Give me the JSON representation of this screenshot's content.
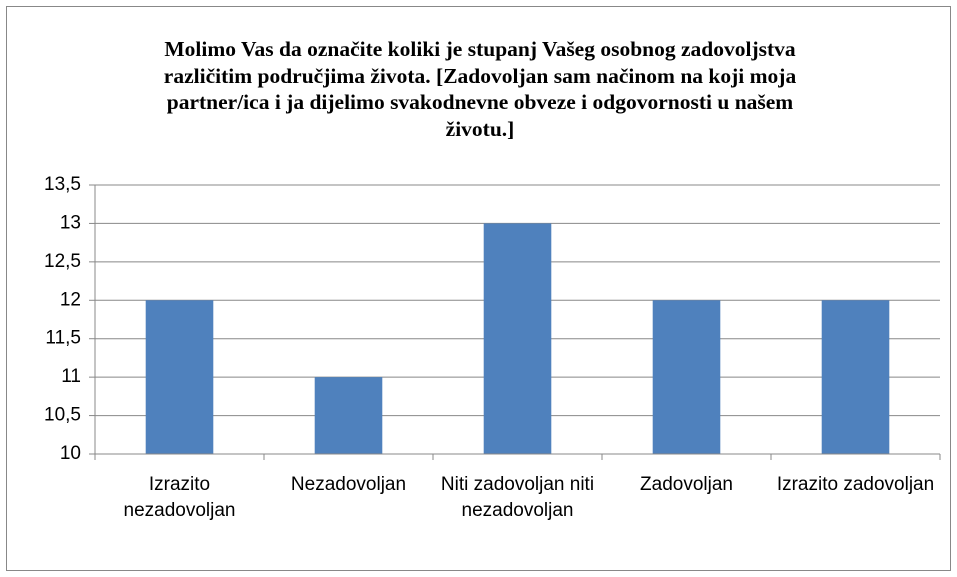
{
  "chart_data": {
    "type": "bar",
    "title": "Molimo Vas da označite koliki je stupanj Vašeg osobnog zadovoljstva različitim područjima života. [Zadovoljan sam načinom na koji moja partner/ica i ja dijelimo svakodnevne obveze i odgovornosti u našem životu.]",
    "categories": [
      "Izrazito nezadovoljan",
      "Nezadovoljan",
      "Niti zadovoljan niti nezadovoljan",
      "Zadovoljan",
      "Izrazito zadovoljan"
    ],
    "values": [
      12,
      11,
      13,
      12,
      12
    ],
    "color": "#4f81bd",
    "ylim": [
      10,
      13.5
    ],
    "yticks": [
      10,
      {
        "value": 10.5,
        "label": "10,5"
      },
      11,
      {
        "value": 11.5,
        "label": "11,5"
      },
      12,
      {
        "value": 12.5,
        "label": "12,5"
      },
      13,
      {
        "value": 13.5,
        "label": "13,5"
      }
    ],
    "grid": true
  }
}
